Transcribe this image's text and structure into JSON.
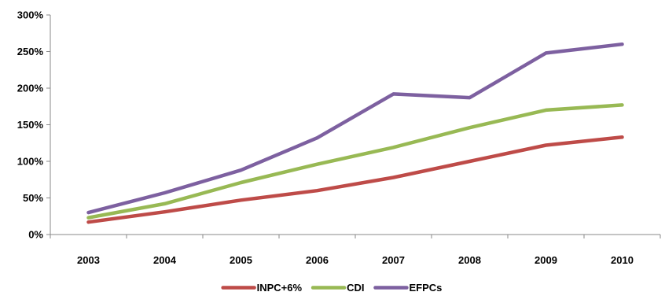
{
  "chart_data": {
    "type": "line",
    "title": "",
    "xlabel": "",
    "ylabel": "",
    "categories": [
      "2003",
      "2004",
      "2005",
      "2006",
      "2007",
      "2008",
      "2009",
      "2010"
    ],
    "ylim": [
      0,
      300
    ],
    "yticks": [
      0,
      50,
      100,
      150,
      200,
      250,
      300
    ],
    "ytick_labels": [
      "0%",
      "50%",
      "100%",
      "150%",
      "200%",
      "250%",
      "300%"
    ],
    "grid": false,
    "legend_position": "bottom",
    "series": [
      {
        "name": "INPC+6%",
        "color": "#be4b48",
        "values": [
          17,
          31,
          47,
          60,
          78,
          100,
          122,
          133
        ]
      },
      {
        "name": "CDI",
        "color": "#98b954",
        "values": [
          23,
          42,
          71,
          96,
          119,
          146,
          170,
          177
        ]
      },
      {
        "name": "EFPCs",
        "color": "#7d60a0",
        "values": [
          30,
          57,
          88,
          132,
          192,
          187,
          248,
          260
        ]
      }
    ]
  }
}
